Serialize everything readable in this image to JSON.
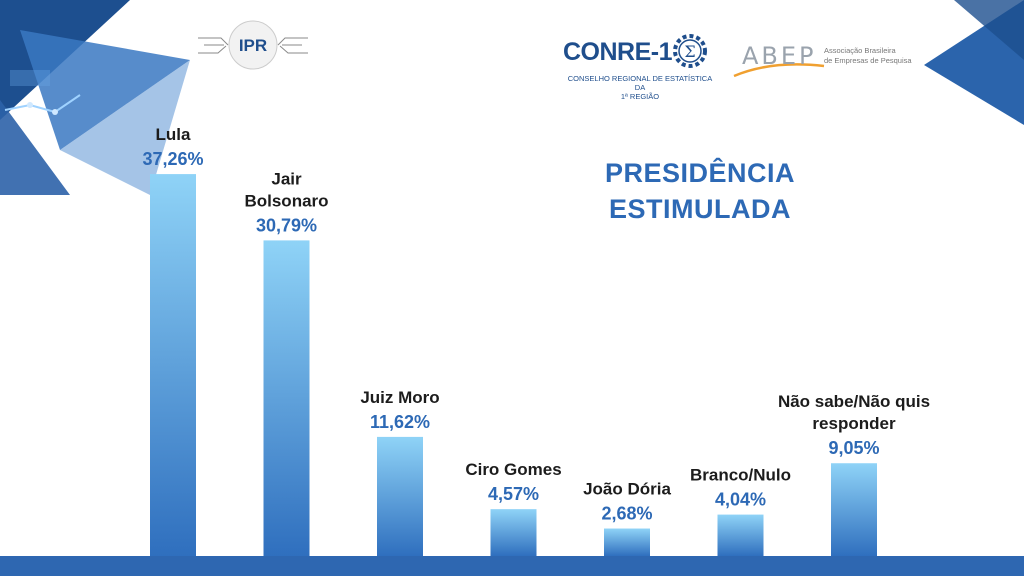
{
  "chart_data": {
    "type": "bar",
    "title": "PRESIDÊNCIA ESTIMULADA",
    "title_lines": [
      "PRESIDÊNCIA",
      "ESTIMULADA"
    ],
    "categories": [
      "Lula",
      "Jair Bolsonaro",
      "Juiz Moro",
      "Ciro Gomes",
      "João Dória",
      "Branco/Nulo",
      "Não sabe/Não quis responder"
    ],
    "category_lines": [
      [
        "Lula"
      ],
      [
        "Jair",
        "Bolsonaro"
      ],
      [
        "Juiz Moro"
      ],
      [
        "Ciro Gomes"
      ],
      [
        "João Dória"
      ],
      [
        "Branco/Nulo"
      ],
      [
        "Não sabe/Não quis",
        "responder"
      ]
    ],
    "values": [
      37.26,
      30.79,
      11.62,
      4.57,
      2.68,
      4.04,
      9.05
    ],
    "value_labels": [
      "37,26%",
      "30,79%",
      "11,62%",
      "4,57%",
      "2,68%",
      "4,04%",
      "9,05%"
    ],
    "ylim": [
      0,
      40
    ],
    "grid": false,
    "bar_color_top": "#8fd3f7",
    "bar_color_bottom": "#2f6fbe"
  },
  "logos": {
    "ipr_text": "IPR",
    "conre_name": "CONRE-1",
    "conre_subtitle_lines": [
      "CONSELHO REGIONAL DE ESTATÍSTICA DA",
      "1ª REGIÃO"
    ],
    "abep_name": "ABEP",
    "abep_subtitle_lines": [
      "Associação Brasileira",
      "de Empresas de Pesquisa"
    ]
  },
  "colors": {
    "accent": "#2d69b5",
    "dark_blue": "#1f4e8c",
    "footer_band": "#2e67b1"
  }
}
